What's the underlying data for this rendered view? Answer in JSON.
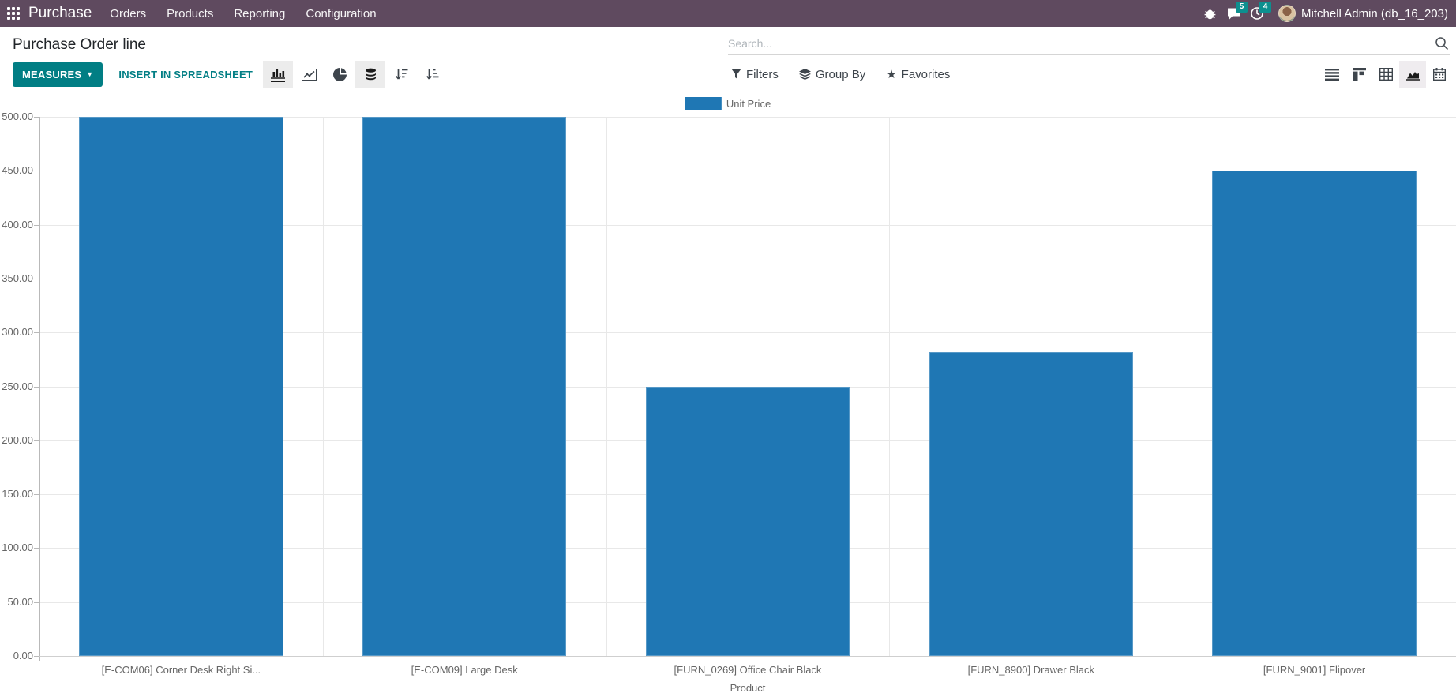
{
  "navbar": {
    "brand": "Purchase",
    "menus": [
      "Orders",
      "Products",
      "Reporting",
      "Configuration"
    ],
    "messages_badge": "5",
    "activities_badge": "4",
    "user": "Mitchell Admin (db_16_203)"
  },
  "control_panel": {
    "title": "Purchase Order line",
    "search_placeholder": "Search...",
    "measures_label": "MEASURES",
    "insert_label": "INSERT IN SPREADSHEET",
    "filters_label": "Filters",
    "group_by_label": "Group By",
    "favorites_label": "Favorites"
  },
  "chart_data": {
    "type": "bar",
    "title": "",
    "categories": [
      "[E-COM06] Corner Desk Right Si...",
      "[E-COM09] Large Desk",
      "[FURN_0269] Office Chair Black",
      "[FURN_8900] Drawer Black",
      "[FURN_9001] Flipover"
    ],
    "series": [
      {
        "name": "Unit Price",
        "values": [
          500.0,
          500.0,
          250.0,
          282.0,
          450.0
        ]
      }
    ],
    "xlabel": "Product",
    "ylabel": "",
    "ylim": [
      0,
      500
    ],
    "ytick_step": 50,
    "ytick_decimals": 2,
    "grid": true,
    "legend_position": "top",
    "bar_color": "#1f77b4"
  },
  "colors": {
    "navbar_bg": "#5f4a5f",
    "accent_teal": "#017e84",
    "badge_teal": "#0d8f8f",
    "bar_blue": "#1f77b4",
    "axis_text": "#666666",
    "gridline": "#e8e8e8"
  }
}
